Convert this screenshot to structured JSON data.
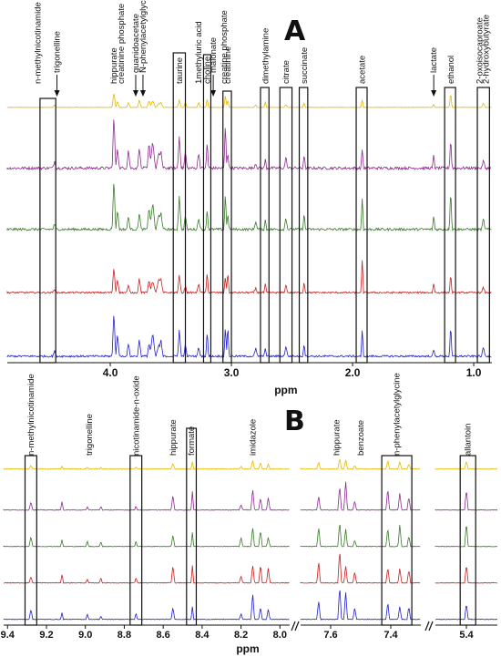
{
  "chart_data": [
    {
      "panel": "A",
      "type": "line",
      "xlabel": "ppm",
      "x_reversed": true,
      "xlim": [
        4.85,
        0.85
      ],
      "ticks": [
        4.0,
        3.0,
        2.0,
        1.0
      ],
      "tick_labels": [
        "4.0",
        "3.0",
        "2.0",
        "1.0"
      ],
      "series_colors": [
        "#e6b800",
        "#8b2c8e",
        "#3a7a2a",
        "#c62020",
        "#2020c8"
      ],
      "boxes": [
        {
          "label": "n-methylnicotinamide",
          "x1": 4.58,
          "x2": 4.45
        },
        {
          "label": "taurine",
          "x1": 3.48,
          "x2": 3.38
        },
        {
          "label": "choline",
          "x1": 3.23,
          "x2": 3.17
        },
        {
          "label": "creatinine",
          "x1": 3.07,
          "x2": 3.0
        },
        {
          "label": "dimethylamine",
          "x1": 2.76,
          "x2": 2.69
        },
        {
          "label": "citrate",
          "x1": 2.6,
          "x2": 2.5
        },
        {
          "label": "succinate",
          "x1": 2.44,
          "x2": 2.37
        },
        {
          "label": "acetate",
          "x1": 1.97,
          "x2": 1.88
        },
        {
          "label": "ethanol",
          "x1": 1.24,
          "x2": 1.15
        },
        {
          "label": "2-hydroxybutyrate",
          "x1": 0.97,
          "x2": 0.87
        }
      ],
      "labels": [
        {
          "text": "n-methylnicotinamide",
          "x": 4.6
        },
        {
          "text": "trigonelline",
          "x": 4.44,
          "arrow": true
        },
        {
          "text": "hippurate",
          "x": 3.97
        },
        {
          "text": "creatinine phosphate",
          "x": 3.91
        },
        {
          "text": "guanidoacetate",
          "x": 3.79,
          "arrow": true
        },
        {
          "text": "N-phenylacetylglycine",
          "x": 3.73,
          "arrow": true
        },
        {
          "text": "taurine",
          "x": 3.43
        },
        {
          "text": "1methyluric acid",
          "x": 3.27
        },
        {
          "text": "choline",
          "x": 3.2
        },
        {
          "text": "malonate",
          "x": 3.15,
          "arrow": true
        },
        {
          "text": "creatine phosphate",
          "x": 3.06
        },
        {
          "text": "creatinine",
          "x": 3.03
        },
        {
          "text": "dimethylamine",
          "x": 2.72
        },
        {
          "text": "citrate",
          "x": 2.55
        },
        {
          "text": "succinate",
          "x": 2.4
        },
        {
          "text": "acetate",
          "x": 1.92
        },
        {
          "text": "lactate",
          "x": 1.33,
          "arrow": true
        },
        {
          "text": "ethanol",
          "x": 1.19
        },
        {
          "text": "2-oxoisocaproate",
          "x": 0.95
        },
        {
          "text": "2-hydroxybutyrate",
          "x": 0.9
        }
      ]
    },
    {
      "panel": "B",
      "type": "line",
      "xlabel": "ppm",
      "x_reversed": true,
      "series_colors": [
        "#e6b800",
        "#8b2c8e",
        "#3a7a2a",
        "#c62020",
        "#2020c8"
      ],
      "segments": [
        {
          "xlim": [
            9.42,
            7.95
          ],
          "ticks": [
            9.4,
            9.2,
            9.0,
            8.8,
            8.6,
            8.4,
            8.2,
            8.0
          ],
          "tick_labels": [
            "9.4",
            "9.2",
            "9.0",
            "8.8",
            "8.6",
            "8.4",
            "8.2",
            "8.0"
          ],
          "boxes": [
            {
              "label": "n-methylnicotinamide",
              "x1": 9.31,
              "x2": 9.25
            },
            {
              "label": "nicotinamide-n-oxide",
              "x1": 8.77,
              "x2": 8.71
            },
            {
              "label": "formate",
              "x1": 8.48,
              "x2": 8.43
            }
          ],
          "labels": [
            {
              "text": "n-methylnicotinamide",
              "x": 9.28
            },
            {
              "text": "trigonelline",
              "x": 8.98
            },
            {
              "text": "nicotinamide-n-oxide",
              "x": 8.74
            },
            {
              "text": "hippurate",
              "x": 8.55
            },
            {
              "text": "formate",
              "x": 8.455
            },
            {
              "text": "imidazole",
              "x": 8.14
            }
          ]
        },
        {
          "xlim": [
            7.7,
            7.3
          ],
          "ticks": [
            7.6,
            7.4
          ],
          "tick_labels": [
            "7.6",
            "7.4"
          ],
          "boxes": [
            {
              "label": "n-phenylacetylglycine",
              "x1": 7.43,
              "x2": 7.33
            }
          ],
          "labels": [
            {
              "text": "hippurate",
              "x": 7.58
            },
            {
              "text": "benzoate",
              "x": 7.5
            },
            {
              "text": "n-phenylacetylglycine",
              "x": 7.38
            }
          ]
        },
        {
          "xlim": [
            5.5,
            5.3
          ],
          "ticks": [
            5.4
          ],
          "tick_labels": [
            "5.4"
          ],
          "boxes": [
            {
              "label": "allantoin",
              "x1": 5.42,
              "x2": 5.37
            }
          ],
          "labels": [
            {
              "text": "allantoin",
              "x": 5.395
            }
          ]
        }
      ]
    }
  ]
}
